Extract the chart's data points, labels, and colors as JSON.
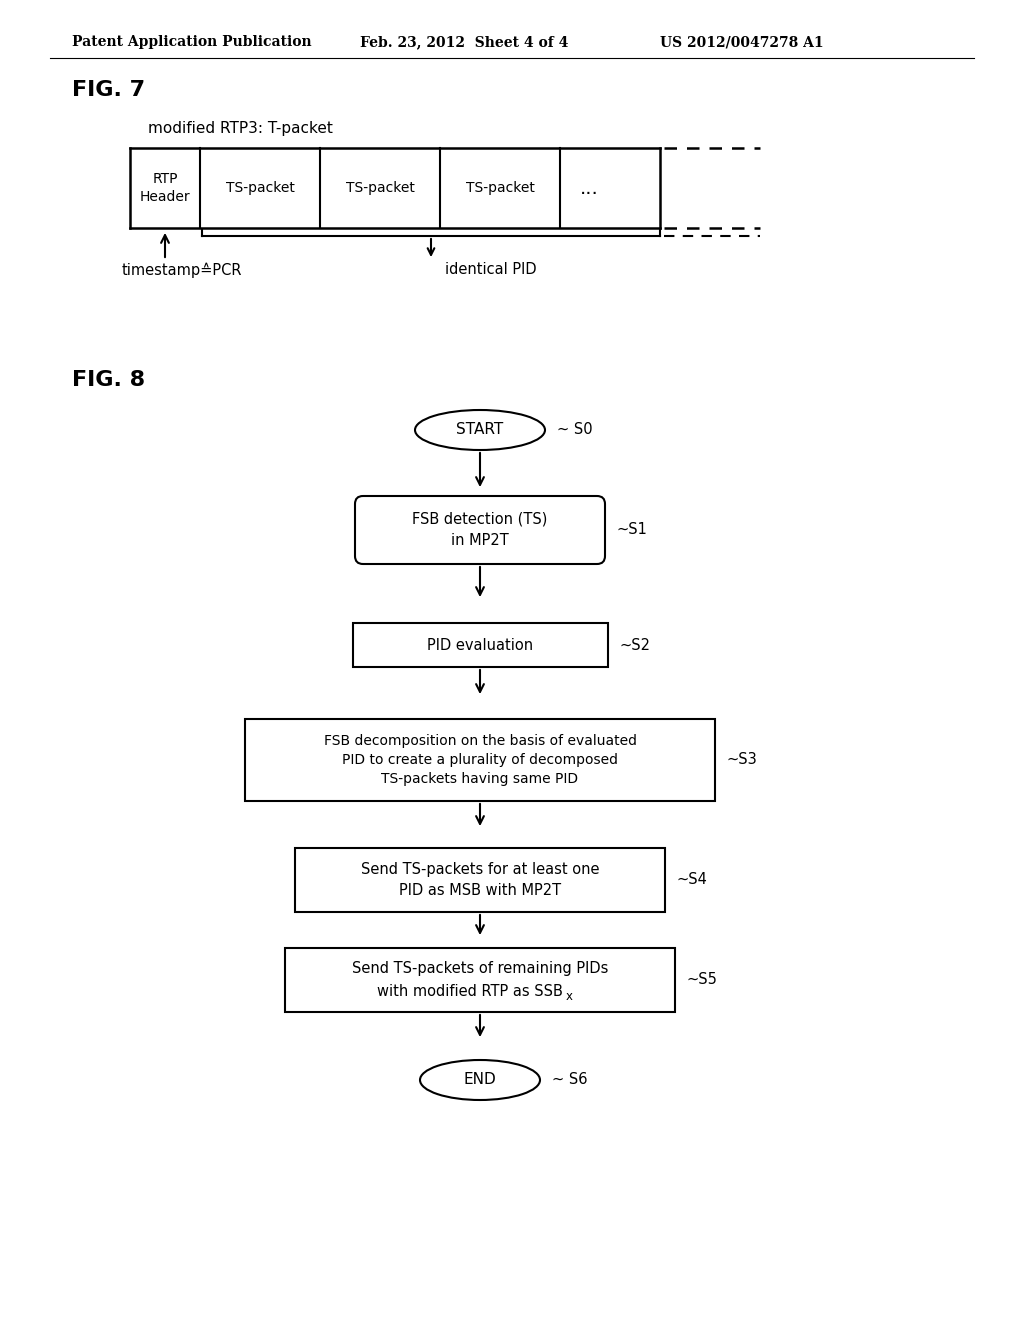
{
  "bg_color": "#ffffff",
  "header_text": "Patent Application Publication",
  "header_date": "Feb. 23, 2012  Sheet 4 of 4",
  "header_num": "US 2012/0047278 A1",
  "fig7_label": "FIG. 7",
  "fig8_label": "FIG. 8",
  "modified_rtp_label": "modified RTP3: T-packet",
  "rtp_header": "RTP\nHeader",
  "ts_packets": [
    "TS-packet",
    "TS-packet",
    "TS-packet"
  ],
  "dots": "...",
  "identical_pid": "identical PID",
  "timestamp_label": "timestamp≙PCR",
  "s0_label": "~ S0",
  "s1_text": "FSB detection (TS)\nin MP2T",
  "s1_label": "~S1",
  "s2_text": "PID evaluation",
  "s2_label": "~S2",
  "s3_text": "FSB decomposition on the basis of evaluated\nPID to create a plurality of decomposed\nTS-packets having same PID",
  "s3_label": "~S3",
  "s4_text": "Send TS-packets for at least one\nPID as MSB with MP2T",
  "s4_label": "~S4",
  "s5_line1": "Send TS-packets of remaining PIDs",
  "s5_line2": "with modified RTP as SSB",
  "s5_sub": "x",
  "s5_label": "~S5",
  "s6_label": "~ S6"
}
